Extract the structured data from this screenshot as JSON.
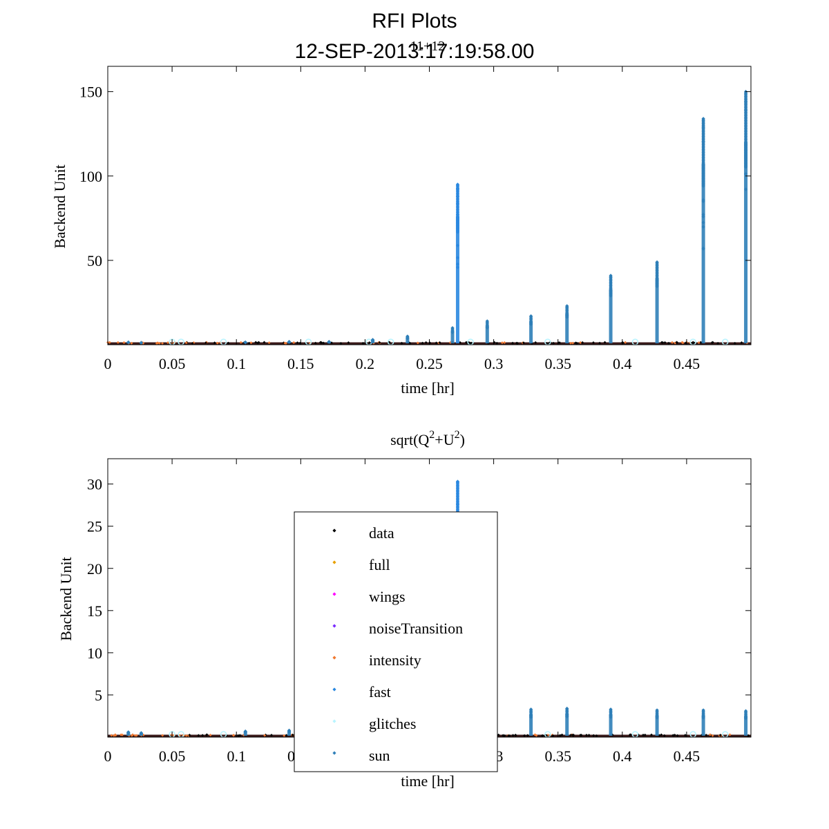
{
  "figure": {
    "title_line1": "RFI Plots",
    "title_line2": "12-SEP-2013:17:19:58.00",
    "overlap_label": "11+12"
  },
  "colors": {
    "data": "#000000",
    "data_dark": "#3a1a1a",
    "full": "#e8a000",
    "wings": "#ff00ff",
    "noiseTransition": "#7b2cff",
    "intensity": "#f07830",
    "fast": "#2a88e0",
    "glitches": "#b8f4ff",
    "sun": "#2f7fb8"
  },
  "legend": {
    "items": [
      {
        "key": "data",
        "label": "data"
      },
      {
        "key": "full",
        "label": "full"
      },
      {
        "key": "wings",
        "label": "wings"
      },
      {
        "key": "noiseTransition",
        "label": "noiseTransition"
      },
      {
        "key": "intensity",
        "label": "intensity"
      },
      {
        "key": "fast",
        "label": "fast"
      },
      {
        "key": "glitches",
        "label": "glitches"
      },
      {
        "key": "sun",
        "label": "sun"
      }
    ]
  },
  "chart_data": [
    {
      "type": "scatter",
      "title": "",
      "xlabel": "time [hr]",
      "ylabel": "Backend Unit",
      "xlim": [
        0,
        0.5
      ],
      "ylim": [
        0,
        165
      ],
      "xticks": [
        0,
        0.05,
        0.1,
        0.15,
        0.2,
        0.25,
        0.3,
        0.35,
        0.4,
        0.45
      ],
      "xtick_labels": [
        "0",
        "0.05",
        "0.1",
        "0.15",
        "0.2",
        "0.25",
        "0.3",
        "0.35",
        "0.4",
        "0.45"
      ],
      "yticks": [
        50,
        100,
        150
      ],
      "ytick_labels": [
        "50",
        "100",
        "150"
      ],
      "series": [
        {
          "name": "sun",
          "spikes": [
            {
              "x": 0.016,
              "ymax": 1.5
            },
            {
              "x": 0.026,
              "ymax": 1.2
            },
            {
              "x": 0.107,
              "ymax": 1.5
            },
            {
              "x": 0.141,
              "ymax": 1.8
            },
            {
              "x": 0.172,
              "ymax": 1.8
            },
            {
              "x": 0.206,
              "ymax": 3
            },
            {
              "x": 0.233,
              "ymax": 5
            },
            {
              "x": 0.268,
              "ymax": 10
            },
            {
              "x": 0.295,
              "ymax": 14
            },
            {
              "x": 0.329,
              "ymax": 17
            },
            {
              "x": 0.357,
              "ymax": 23
            },
            {
              "x": 0.391,
              "ymax": 41
            },
            {
              "x": 0.427,
              "ymax": 49
            },
            {
              "x": 0.463,
              "ymax": 134
            },
            {
              "x": 0.496,
              "ymax": 150
            }
          ]
        },
        {
          "name": "fast",
          "spikes": [
            {
              "x": 0.272,
              "ymax": 95
            }
          ]
        }
      ]
    },
    {
      "type": "scatter",
      "title": "sqrt(Q2+U2)",
      "title_parts": {
        "base": "sqrt(Q",
        "sup1": "2",
        "mid": "+U",
        "sup2": "2",
        "end": ")"
      },
      "xlabel": "time [hr]",
      "ylabel": "Backend Unit",
      "xlim": [
        0,
        0.5
      ],
      "ylim": [
        0,
        33
      ],
      "xticks": [
        0,
        0.05,
        0.1,
        0.15,
        0.2,
        0.25,
        0.3,
        0.35,
        0.4,
        0.45
      ],
      "xtick_labels": [
        "0",
        "0.05",
        "0.1",
        "0.15",
        "0.2",
        "0.25",
        "0.3",
        "0.35",
        "0.4",
        "0.45"
      ],
      "yticks": [
        5,
        10,
        15,
        20,
        25,
        30
      ],
      "ytick_labels": [
        "5",
        "10",
        "15",
        "20",
        "25",
        "30"
      ],
      "series": [
        {
          "name": "sun",
          "spikes": [
            {
              "x": 0.016,
              "ymax": 0.6
            },
            {
              "x": 0.026,
              "ymax": 0.5
            },
            {
              "x": 0.107,
              "ymax": 0.7
            },
            {
              "x": 0.141,
              "ymax": 0.8
            },
            {
              "x": 0.329,
              "ymax": 3.3
            },
            {
              "x": 0.357,
              "ymax": 3.4
            },
            {
              "x": 0.391,
              "ymax": 3.3
            },
            {
              "x": 0.427,
              "ymax": 3.2
            },
            {
              "x": 0.463,
              "ymax": 3.2
            },
            {
              "x": 0.496,
              "ymax": 3.1
            }
          ]
        },
        {
          "name": "fast",
          "spikes": [
            {
              "x": 0.272,
              "ymax": 30.3
            }
          ]
        }
      ]
    }
  ]
}
